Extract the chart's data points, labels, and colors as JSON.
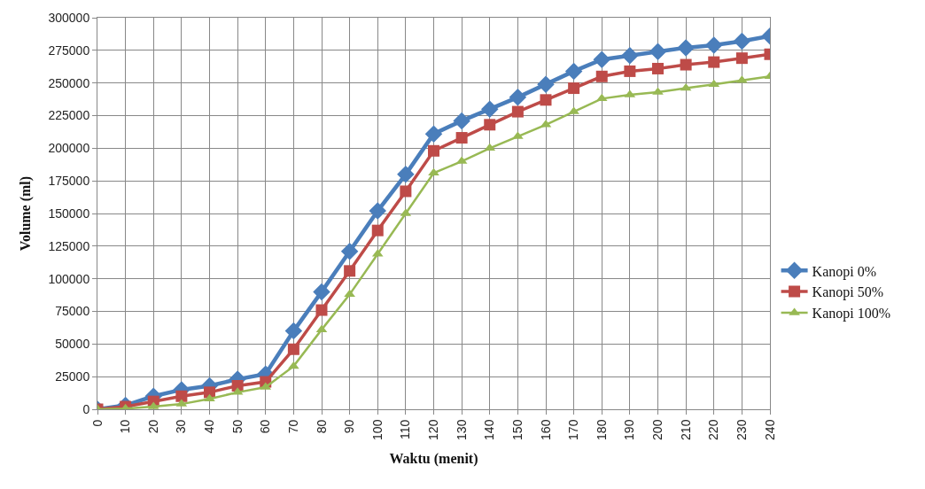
{
  "chart_data": {
    "type": "line",
    "xlabel": "Waktu (menit)",
    "ylabel": "Volume (ml)",
    "x": [
      0,
      10,
      20,
      30,
      40,
      50,
      60,
      70,
      80,
      90,
      100,
      110,
      120,
      130,
      140,
      150,
      160,
      170,
      180,
      190,
      200,
      210,
      220,
      230,
      240
    ],
    "series": [
      {
        "name": "Kanopi 0%",
        "color": "#4a7ebb",
        "marker": "diamond",
        "values": [
          0,
          3000,
          10000,
          15000,
          18000,
          23000,
          27000,
          60000,
          90000,
          121000,
          152000,
          180000,
          211000,
          221000,
          230000,
          239000,
          249000,
          259000,
          268000,
          271000,
          274000,
          277000,
          279000,
          282000,
          286000
        ]
      },
      {
        "name": "Kanopi 50%",
        "color": "#be4b48",
        "marker": "square",
        "values": [
          0,
          2000,
          6000,
          10000,
          13000,
          18000,
          21000,
          46000,
          76000,
          106000,
          137000,
          167000,
          198000,
          208000,
          218000,
          228000,
          237000,
          246000,
          255000,
          259000,
          261000,
          264000,
          266000,
          269000,
          272000
        ]
      },
      {
        "name": "Kanopi 100%",
        "color": "#98b954",
        "marker": "triangle",
        "values": [
          0,
          500,
          2000,
          4000,
          8000,
          13000,
          17000,
          33000,
          61000,
          88000,
          119000,
          150000,
          181000,
          190000,
          200000,
          209000,
          218000,
          228000,
          238000,
          241000,
          243000,
          246000,
          249000,
          252000,
          255000
        ]
      }
    ],
    "xlim": [
      0,
      240
    ],
    "xticks": [
      0,
      10,
      20,
      30,
      40,
      50,
      60,
      70,
      80,
      90,
      100,
      110,
      120,
      130,
      140,
      150,
      160,
      170,
      180,
      190,
      200,
      210,
      220,
      230,
      240
    ],
    "ylim": [
      0,
      300000
    ],
    "yticks": [
      0,
      25000,
      50000,
      75000,
      100000,
      125000,
      150000,
      175000,
      200000,
      225000,
      250000,
      275000,
      300000
    ],
    "grid": true,
    "legend": "right",
    "line_style": "solid"
  }
}
